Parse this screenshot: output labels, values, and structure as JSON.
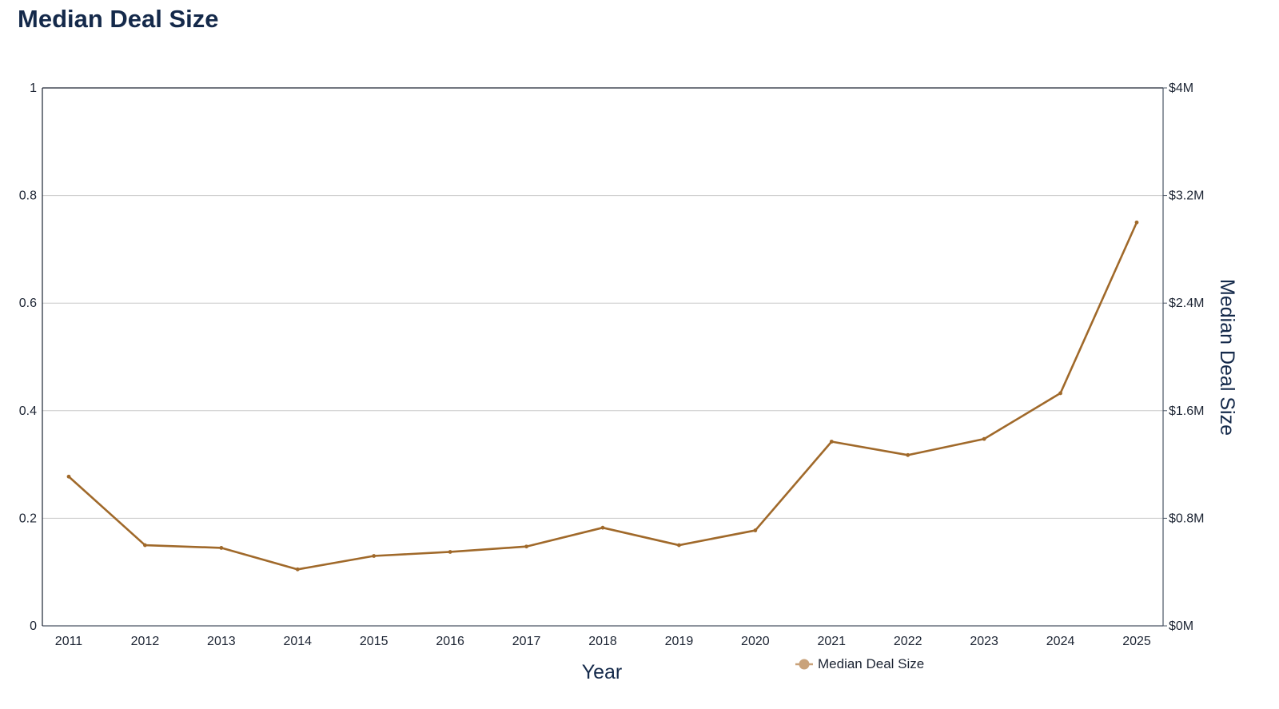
{
  "chart_data": {
    "type": "line",
    "title": "Median Deal Size",
    "xlabel": "Year",
    "ylabel_left": "",
    "ylabel_right": "Median Deal Size",
    "categories": [
      "2011",
      "2012",
      "2013",
      "2014",
      "2015",
      "2016",
      "2017",
      "2018",
      "2019",
      "2020",
      "2021",
      "2022",
      "2023",
      "2024",
      "2025"
    ],
    "series": [
      {
        "name": "Median Deal Size",
        "axis": "right",
        "values": [
          1.11,
          0.6,
          0.58,
          0.42,
          0.52,
          0.55,
          0.59,
          0.73,
          0.6,
          0.71,
          1.37,
          1.27,
          1.39,
          1.73,
          3.0
        ]
      }
    ],
    "y_left": {
      "range": [
        0,
        1
      ],
      "ticks": [
        0,
        0.2,
        0.4,
        0.6,
        0.8,
        1
      ],
      "tick_labels": [
        "0",
        "0.2",
        "0.4",
        "0.6",
        "0.8",
        "1"
      ]
    },
    "y_right": {
      "range": [
        0,
        4
      ],
      "ticks": [
        0,
        0.8,
        1.6,
        2.4,
        3.2,
        4
      ],
      "tick_labels": [
        "$0M",
        "$0.8M",
        "$1.6M",
        "$2.4M",
        "$3.2M",
        "$4M"
      ],
      "unit": "$M"
    },
    "grid": true,
    "legend_position": "bottom-center"
  },
  "colors": {
    "series": "#a0692a",
    "legend_marker": "#c9a27a",
    "grid": "#c8c8c8",
    "axis": "#1c2433",
    "title": "#14294a"
  }
}
